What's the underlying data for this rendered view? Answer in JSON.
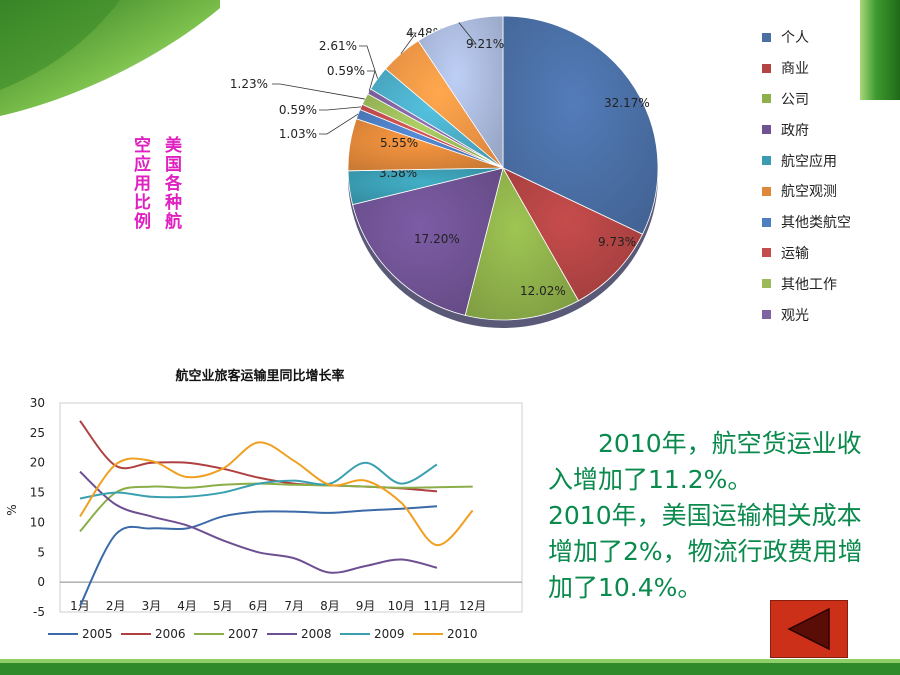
{
  "pie_title": [
    "美国各种航",
    "空应用比例"
  ],
  "chart_data": [
    {
      "type": "pie",
      "title": "美国各种航空应用比例",
      "slices": [
        {
          "name": "个人",
          "value": 32.17,
          "label": "32.17%",
          "color": "#4a6fa5"
        },
        {
          "name": "商业",
          "value": 9.73,
          "label": "9.73%",
          "color": "#b24444"
        },
        {
          "name": "公司",
          "value": 12.02,
          "label": "12.02%",
          "color": "#8eb04a"
        },
        {
          "name": "政府",
          "value": 17.2,
          "label": "17.20%",
          "color": "#6f5293"
        },
        {
          "name": "航空应用",
          "value": 3.58,
          "label": "3.58%",
          "color": "#3a9bb1"
        },
        {
          "name": "航空观测",
          "value": 5.55,
          "label": "5.55%",
          "color": "#e0883a"
        },
        {
          "name": "其他类航空",
          "value": 1.03,
          "label": "1.03%",
          "color": "#4d7ec0"
        },
        {
          "name": "运输",
          "value": 0.59,
          "label": "0.59%",
          "color": "#c44e4e"
        },
        {
          "name": "其他工作",
          "value": 1.23,
          "label": "1.23%",
          "color": "#9bbb59"
        },
        {
          "name": "观光",
          "value": 0.59,
          "label": "0.59%",
          "color": "#8064a2"
        },
        {
          "name": "",
          "value": 2.61,
          "label": "2.61%",
          "color": "#4bacc6"
        },
        {
          "name": "",
          "value": 4.48,
          "label": "4.48%",
          "color": "#f79646"
        },
        {
          "name": "",
          "value": 9.21,
          "label": "9.21%",
          "color": "#aab9dc"
        }
      ],
      "legend_position": "right"
    },
    {
      "type": "line",
      "title": "航空业旅客运输里同比增长率",
      "ylabel": "%",
      "ylim": [
        -5,
        30
      ],
      "yticks": [
        -5,
        0,
        5,
        10,
        15,
        20,
        25,
        30
      ],
      "categories": [
        "1月",
        "2月",
        "3月",
        "4月",
        "5月",
        "6月",
        "7月",
        "8月",
        "9月",
        "10月",
        "11月",
        "12月"
      ],
      "legend_position": "bottom",
      "series": [
        {
          "name": "2005",
          "color": "#3b6aa8",
          "values": [
            -4,
            8,
            9,
            9,
            11,
            11.8,
            11.8,
            11.6,
            12,
            12.3,
            12.7,
            null
          ]
        },
        {
          "name": "2006",
          "color": "#b04040",
          "values": [
            27,
            19.5,
            20,
            20,
            19,
            17.5,
            16.5,
            16.2,
            16,
            15.7,
            15.2,
            null
          ]
        },
        {
          "name": "2007",
          "color": "#8cae48",
          "values": [
            8.5,
            15,
            16,
            15.8,
            16.3,
            16.5,
            16.3,
            16.2,
            16,
            15.8,
            15.9,
            16
          ]
        },
        {
          "name": "2008",
          "color": "#6e4f92",
          "values": [
            18.5,
            13,
            11,
            9.5,
            7,
            5,
            4,
            1.6,
            2.7,
            3.8,
            2.4,
            null
          ]
        },
        {
          "name": "2009",
          "color": "#3aa0b0",
          "values": [
            14,
            15,
            14.3,
            14.3,
            15,
            16.5,
            17,
            16.5,
            20,
            16.5,
            19.7,
            null
          ]
        },
        {
          "name": "2010",
          "color": "#f0a020",
          "values": [
            11,
            19.7,
            20.3,
            17.6,
            19,
            23.4,
            20.3,
            16.3,
            17,
            13.3,
            6.2,
            12
          ]
        }
      ]
    }
  ],
  "annotation": {
    "p1": "2010年，航空货运业收入增加了11.2%。",
    "p2": "2010年，美国运输相关成本增加了2%，物流行政费用增加了10.4%。"
  },
  "back_button": {
    "icon": "triangle-left-icon"
  }
}
